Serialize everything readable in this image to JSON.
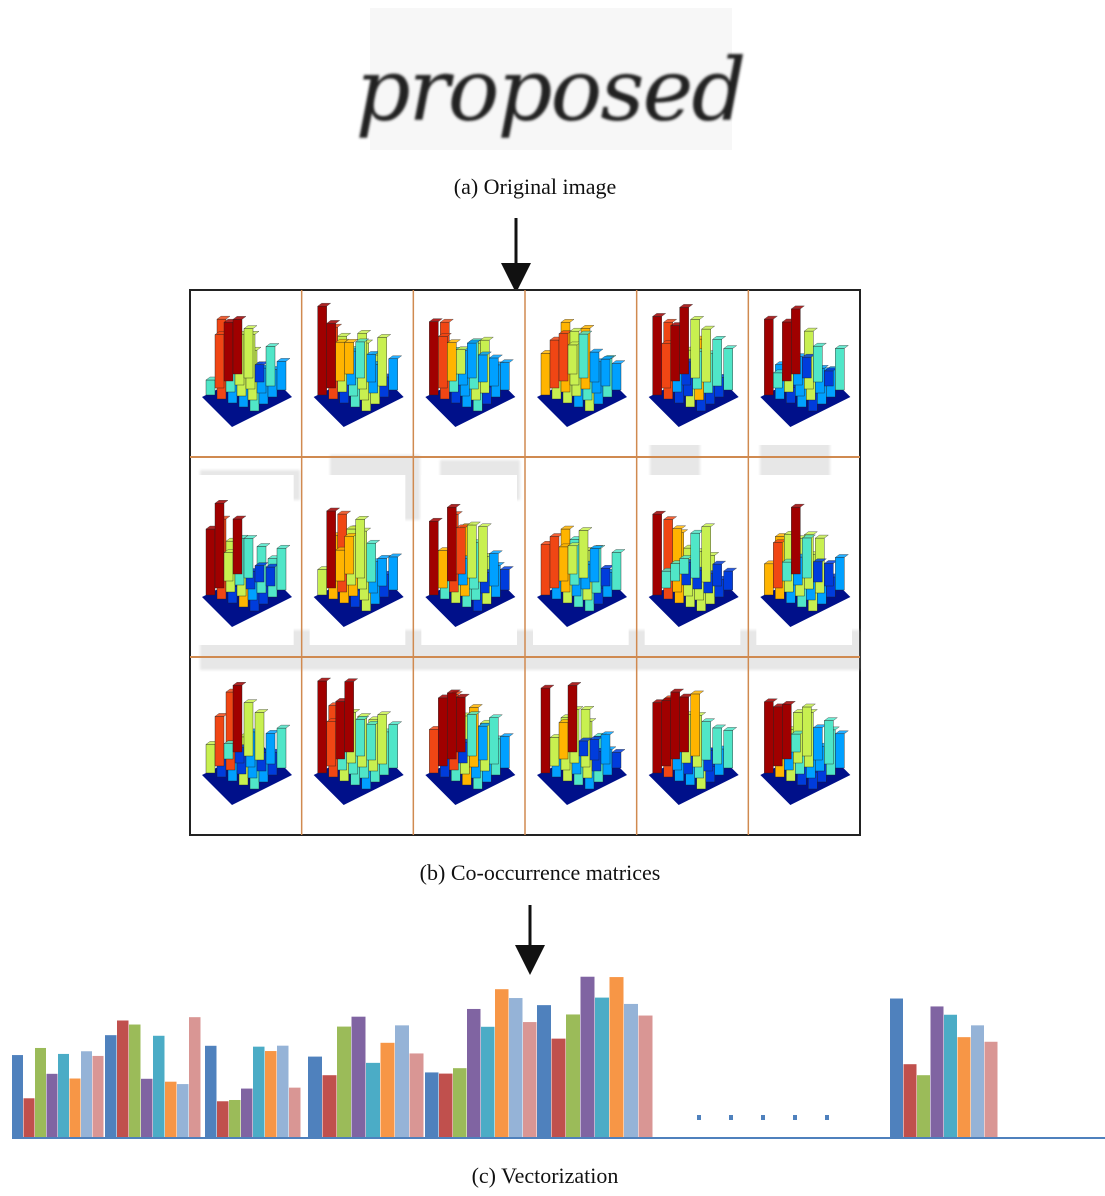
{
  "figure": {
    "original_image": {
      "word": "proposed",
      "caption": "(a) Original image"
    },
    "matrices": {
      "caption": "(b) Co-occurrence matrices"
    },
    "vectorization": {
      "caption": "(c) Vectorization"
    }
  }
}
